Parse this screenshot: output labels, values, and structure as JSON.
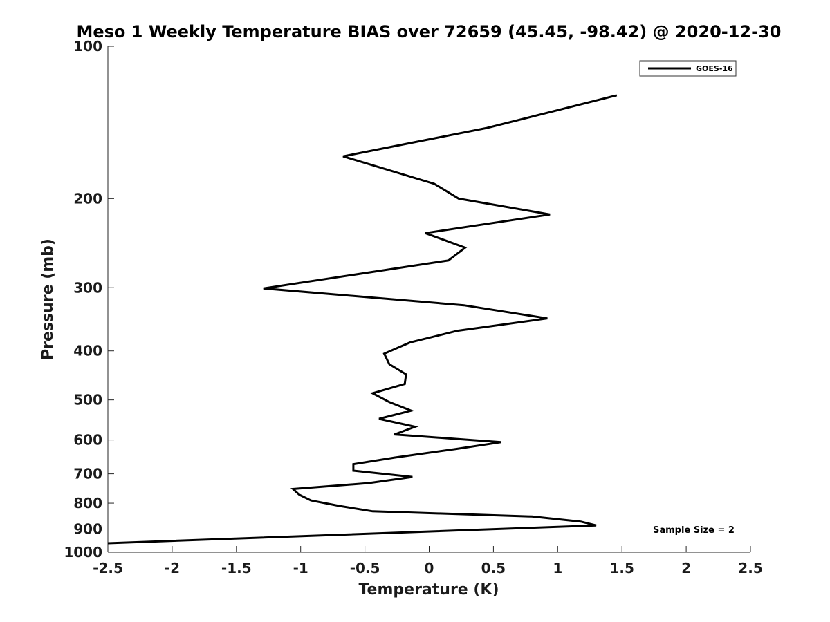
{
  "chart_data": {
    "type": "line",
    "title": "Meso 1 Weekly Temperature BIAS over 72659 (45.45, -98.42) @ 2020-12-30",
    "xlabel": "Temperature (K)",
    "ylabel": "Pressure (mb)",
    "xlim": [
      -2.5,
      2.5
    ],
    "ylim": [
      100,
      1000
    ],
    "yscale": "log",
    "y_reversed": true,
    "x_ticks": [
      -2.5,
      -2,
      -1.5,
      -1,
      -0.5,
      0,
      0.5,
      1,
      1.5,
      2,
      2.5
    ],
    "x_tick_labels": [
      "-2.5",
      "-2",
      "-1.5",
      "-1",
      "-0.5",
      "0",
      "0.5",
      "1",
      "1.5",
      "2",
      "2.5"
    ],
    "y_ticks": [
      100,
      200,
      300,
      400,
      500,
      600,
      700,
      800,
      900,
      1000
    ],
    "y_tick_labels": [
      "100",
      "200",
      "300",
      "400",
      "500",
      "600",
      "700",
      "800",
      "900",
      "1000"
    ],
    "grid": false,
    "legend_position": "top-right",
    "annotation": "Sample Size = 2",
    "series": [
      {
        "name": "GOES-16",
        "color": "#000000",
        "x": [
          1.46,
          0.45,
          -0.67,
          0.04,
          0.23,
          0.94,
          -0.03,
          0.28,
          0.15,
          -1.29,
          0.27,
          0.92,
          0.22,
          -0.15,
          -0.35,
          -0.31,
          -0.18,
          -0.19,
          -0.44,
          -0.31,
          -0.14,
          -0.39,
          -0.11,
          -0.27,
          0.56,
          0.21,
          -0.27,
          -0.59,
          -0.59,
          -0.13,
          -0.47,
          -1.06,
          -1.01,
          -0.92,
          -0.7,
          -0.44,
          0.8,
          1.18,
          1.3,
          -2.5
        ],
        "y": [
          125,
          145,
          165,
          187,
          200,
          215,
          234,
          250,
          265,
          301,
          325,
          345,
          365,
          385,
          405,
          425,
          445,
          465,
          485,
          505,
          525,
          545,
          565,
          585,
          606,
          625,
          650,
          670,
          690,
          710,
          730,
          750,
          770,
          790,
          810,
          830,
          850,
          870,
          885,
          960
        ]
      }
    ]
  }
}
